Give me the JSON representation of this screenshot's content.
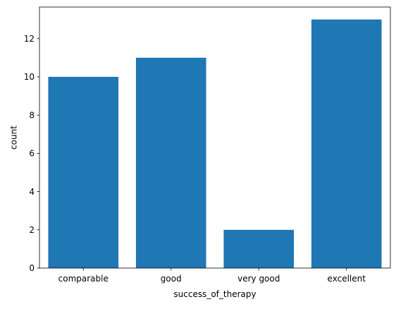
{
  "chart_data": {
    "type": "bar",
    "categories": [
      "comparable",
      "good",
      "very good",
      "excellent"
    ],
    "values": [
      10,
      11,
      2,
      13
    ],
    "xlabel": "success_of_therapy",
    "ylabel": "count",
    "ylim": [
      0,
      13.65
    ],
    "yticks": [
      0,
      2,
      4,
      6,
      8,
      10,
      12
    ],
    "grid": false,
    "bar_color": "#1f77b4"
  }
}
